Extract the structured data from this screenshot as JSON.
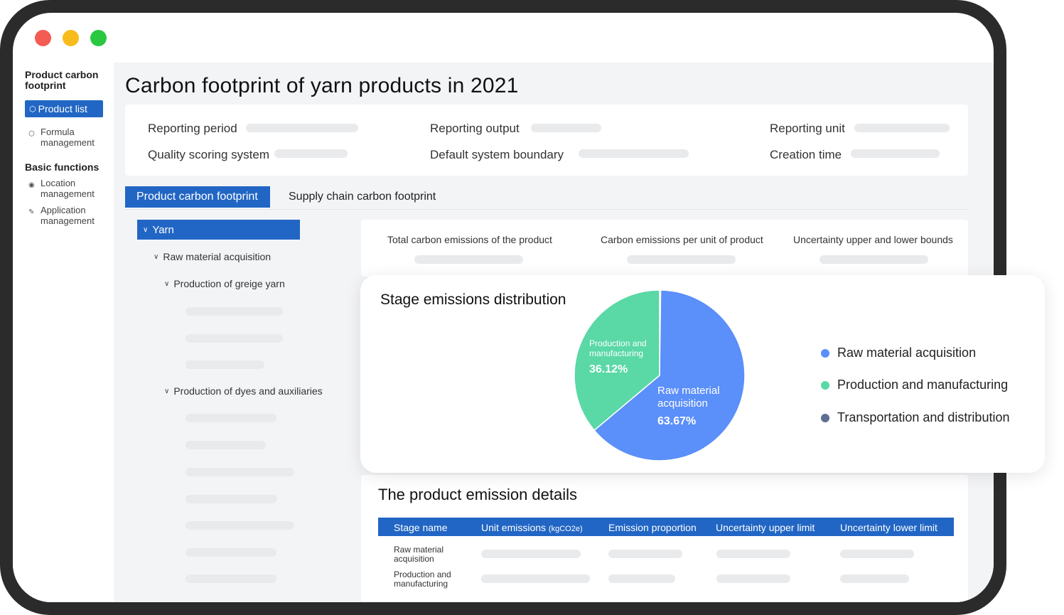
{
  "window": {
    "controls": [
      "close",
      "minimize",
      "maximize"
    ]
  },
  "sidebar": {
    "section1": "Product carbon footprint",
    "active_item": {
      "label": "Product list",
      "icon": "hexagon-icon"
    },
    "items1": [
      {
        "label": "Formula management",
        "icon": "hexagon-icon"
      }
    ],
    "section2": "Basic functions",
    "items2": [
      {
        "label": "Location management",
        "icon": "location-pin-icon"
      },
      {
        "label": "Application management",
        "icon": "edit-icon"
      }
    ]
  },
  "page": {
    "title": "Carbon footprint of yarn products in 2021"
  },
  "info": {
    "reporting_period": "Reporting period",
    "reporting_output": "Reporting output",
    "reporting_unit": "Reporting unit",
    "quality_scoring": "Quality scoring system",
    "default_boundary": "Default system boundary",
    "creation_time": "Creation time"
  },
  "tabs": [
    "Product carbon footprint",
    "Supply chain carbon footprint"
  ],
  "tree": {
    "root": "Yarn",
    "n1": "Raw material acquisition",
    "n2": "Production of greige yarn",
    "n3": "Production of dyes and auxiliaries"
  },
  "stats": {
    "total": "Total carbon emissions of the product",
    "per_unit": "Carbon emissions per unit of product",
    "uncertainty": "Uncertainty upper and lower bounds"
  },
  "stage_card": {
    "title": "Stage emissions distribution",
    "slice_labels": [
      {
        "name": "Raw material acquisition",
        "pct": "63.67%"
      },
      {
        "name": "Production and manufacturing",
        "pct": "36.12%"
      }
    ],
    "legend": [
      {
        "label": "Raw material acquisition",
        "color": "#5b8ff9"
      },
      {
        "label": "Production and manufacturing",
        "color": "#5ad8a6"
      },
      {
        "label": "Transportation and distribution",
        "color": "#5d7092"
      }
    ]
  },
  "chart_data": {
    "type": "pie",
    "categories": [
      "Raw material acquisition",
      "Production and manufacturing",
      "Transportation and distribution"
    ],
    "values": [
      63.67,
      36.12,
      0.21
    ],
    "colors": [
      "#5b8ff9",
      "#5ad8a6",
      "#5d7092"
    ],
    "title": "Stage emissions distribution",
    "legend": "right"
  },
  "details": {
    "title": "The product emission details",
    "columns": {
      "stage": "Stage name",
      "unit": "Unit emissions",
      "unit_suffix": "(kgCO2e)",
      "proportion": "Emission proportion",
      "upper": "Uncertainty upper limit",
      "lower": "Uncertainty lower limit"
    },
    "rows": [
      "Raw material acquisition",
      "Production and manufacturing"
    ]
  }
}
